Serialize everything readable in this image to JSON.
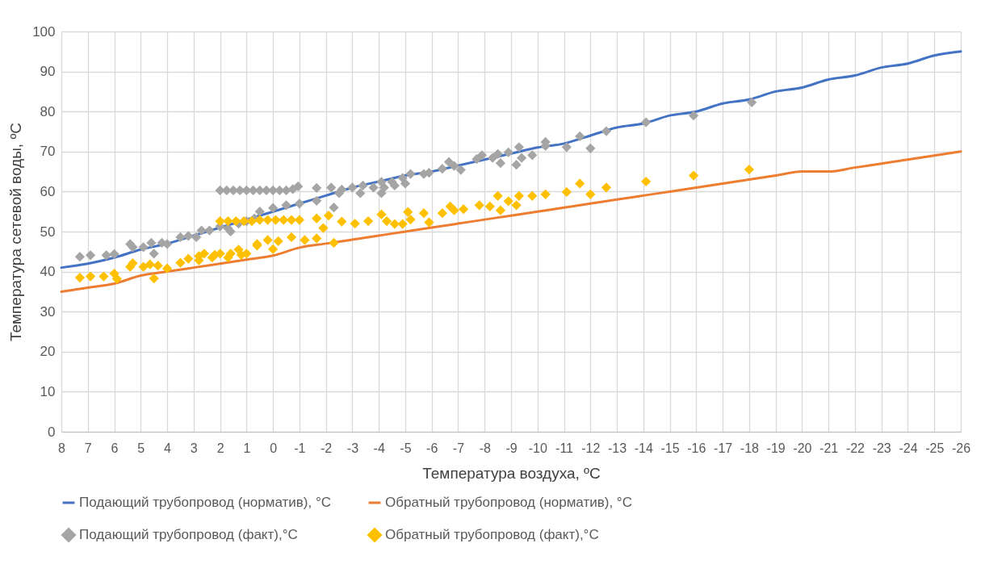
{
  "chart_data": {
    "type": "scatter",
    "xlabel": "Температура воздуха, ºC",
    "ylabel": "Температура сетевой воды, ºC",
    "xlim": [
      8,
      -26
    ],
    "xticks": [
      8,
      7,
      6,
      5,
      4,
      3,
      2,
      1,
      0,
      -1,
      -2,
      -3,
      -4,
      -5,
      -6,
      -7,
      -8,
      -9,
      -10,
      -11,
      -12,
      -13,
      -14,
      -15,
      -16,
      -17,
      -18,
      -19,
      -20,
      -21,
      -22,
      -23,
      -24,
      -25,
      -26
    ],
    "ylim": [
      0,
      100
    ],
    "yticks": [
      0,
      10,
      20,
      30,
      40,
      50,
      60,
      70,
      80,
      90,
      100
    ],
    "grid": true,
    "legend": "bottom",
    "series": [
      {
        "name": "Подающий трубопровод (норматив), °C",
        "type": "line",
        "marker": "none",
        "color": "#4472c4",
        "x": [
          8,
          7,
          6,
          5,
          4,
          3,
          2,
          1,
          0,
          -1,
          -2,
          -3,
          -4,
          -5,
          -6,
          -7,
          -8,
          -9,
          -10,
          -11,
          -12,
          -13,
          -14,
          -15,
          -16,
          -17,
          -18,
          -19,
          -20,
          -21,
          -22,
          -23,
          -24,
          -25,
          -26
        ],
        "values": [
          41,
          42,
          43.5,
          45.5,
          47,
          49,
          51,
          53,
          55,
          57,
          59,
          61,
          62.5,
          64,
          65,
          66.5,
          68,
          69.5,
          71,
          72,
          74,
          76,
          77,
          79,
          80,
          82,
          83,
          85,
          86,
          88,
          89,
          91,
          92,
          94,
          95
        ]
      },
      {
        "name": "Обратный трубопровод (норматив), °C",
        "type": "line",
        "marker": "none",
        "color": "#ed7d31",
        "x": [
          8,
          7,
          6,
          5,
          4,
          3,
          2,
          1,
          0,
          -1,
          -2,
          -3,
          -4,
          -5,
          -6,
          -7,
          -8,
          -9,
          -10,
          -11,
          -12,
          -13,
          -14,
          -15,
          -16,
          -17,
          -18,
          -19,
          -20,
          -21,
          -22,
          -23,
          -24,
          -25,
          -26
        ],
        "values": [
          35,
          36,
          37,
          39,
          40,
          41,
          42,
          43,
          44,
          46,
          47,
          48,
          49,
          50,
          51,
          52,
          53,
          54,
          55,
          56,
          57,
          58,
          59,
          60,
          61,
          62,
          63,
          64,
          65,
          65,
          66,
          67,
          68,
          69,
          70
        ]
      },
      {
        "name": "Подающий трубопровод (факт),°C",
        "type": "scatter",
        "marker": "diamond",
        "color": "#a5a5a5",
        "x": [
          7.3,
          6.9,
          6.3,
          6,
          5.4,
          5.3,
          4.9,
          4.6,
          4.5,
          4.2,
          4,
          3.5,
          3.2,
          2.9,
          2.7,
          2.4,
          2,
          1.6,
          1.3,
          1,
          0.7,
          2,
          1.75,
          1.5,
          1.25,
          1,
          0.75,
          0.5,
          0.25,
          0,
          -0.25,
          -0.5,
          -0.75,
          -0.95,
          -1.65,
          -2.2,
          -2.6,
          -3,
          -3.4,
          -3.8,
          -4.2,
          -4.6,
          -5,
          -2.5,
          -3.3,
          -4.1,
          1.7,
          0.5,
          0,
          -0.5,
          -1,
          -1.65,
          -2.3,
          -4.1,
          -4.5,
          -4.9,
          -5.2,
          -5.7,
          -5.9,
          -6.4,
          -6.65,
          -6.85,
          -7.1,
          -7.7,
          -7.9,
          -8.3,
          -8.6,
          -8.5,
          -8.9,
          -9.2,
          -9.3,
          -9.4,
          -9.8,
          -10.3,
          -10.3,
          -11.1,
          -11.6,
          -12,
          -12.6,
          -14.1,
          -15.9,
          -18.1
        ],
        "values": [
          43.7,
          44.1,
          44.1,
          44.4,
          46.9,
          46.1,
          46.1,
          47.2,
          44.5,
          47.2,
          46.9,
          48.6,
          48.9,
          48.6,
          50.3,
          50.3,
          51.3,
          50,
          52,
          52.6,
          53.3,
          60.3,
          60.3,
          60.3,
          60.3,
          60.3,
          60.3,
          60.3,
          60.3,
          60.3,
          60.3,
          60.3,
          60.6,
          61.3,
          60.9,
          61,
          60.5,
          61,
          61.5,
          61,
          61,
          61.5,
          62,
          59.6,
          59.6,
          59.6,
          50.8,
          55,
          55.9,
          56.6,
          57,
          57.7,
          56,
          62.4,
          62.4,
          63.4,
          64.4,
          64.4,
          64.7,
          65.7,
          67.4,
          66.4,
          65.4,
          68.1,
          69.1,
          68.4,
          67.1,
          69.4,
          69.8,
          66.7,
          71.1,
          68.4,
          69.1,
          72.4,
          71.4,
          71.1,
          73.8,
          70.8,
          75.1,
          77.3,
          79,
          82.3
        ]
      },
      {
        "name": "Обратный трубопровод (факт),°C",
        "type": "scatter",
        "marker": "diamond",
        "color": "#ffc000",
        "x": [
          7.3,
          6.9,
          6.4,
          6,
          5.9,
          5.4,
          5.3,
          4.9,
          4.65,
          4.5,
          4.35,
          4,
          3.5,
          3.2,
          2.8,
          2.6,
          2.3,
          2,
          1.7,
          1.3,
          1,
          0.6,
          2,
          1.7,
          1.4,
          1.1,
          0.8,
          0.5,
          0.2,
          -0.1,
          -0.4,
          -0.7,
          -1,
          -1.65,
          -2.1,
          -2.6,
          -3.1,
          -3.6,
          -4.1,
          -4.6,
          -5.1,
          2.8,
          2.2,
          1.6,
          1.2,
          0.6,
          0.2,
          0,
          -0.2,
          -0.7,
          -1.2,
          -1.65,
          -1.9,
          -2.3,
          -4.3,
          -4.9,
          -5.2,
          -5.7,
          -5.9,
          -6.4,
          -6.7,
          -6.85,
          -7.2,
          -7.8,
          -8.2,
          -8.5,
          -8.6,
          -8.9,
          -9.2,
          -9.3,
          -9.8,
          -10.3,
          -11.1,
          -11.6,
          -12,
          -12.6,
          -14.1,
          -15.9,
          -18
        ],
        "values": [
          38.5,
          38.8,
          38.8,
          39.5,
          38.2,
          41.2,
          42.1,
          41.2,
          41.8,
          38.3,
          41.5,
          40.8,
          42.2,
          43.2,
          43.9,
          44.5,
          43.5,
          44.5,
          43.5,
          45.5,
          44.5,
          46.5,
          52.6,
          52.6,
          52.6,
          52.6,
          52.6,
          52.9,
          52.9,
          52.9,
          52.9,
          52.9,
          52.9,
          53.3,
          54,
          52.5,
          52,
          52.6,
          54.3,
          51.9,
          54.9,
          42.8,
          44.2,
          44.5,
          44.2,
          46.9,
          47.9,
          45.6,
          47.6,
          48.6,
          47.9,
          48.3,
          50.9,
          47.2,
          52.6,
          51.9,
          53,
          54.6,
          52.3,
          54.6,
          56.3,
          55.3,
          55.6,
          56.6,
          56.3,
          58.9,
          55.3,
          57.6,
          56.6,
          58.9,
          58.9,
          59.3,
          59.9,
          62,
          59.3,
          61,
          62.5,
          64,
          65.5
        ]
      }
    ]
  }
}
